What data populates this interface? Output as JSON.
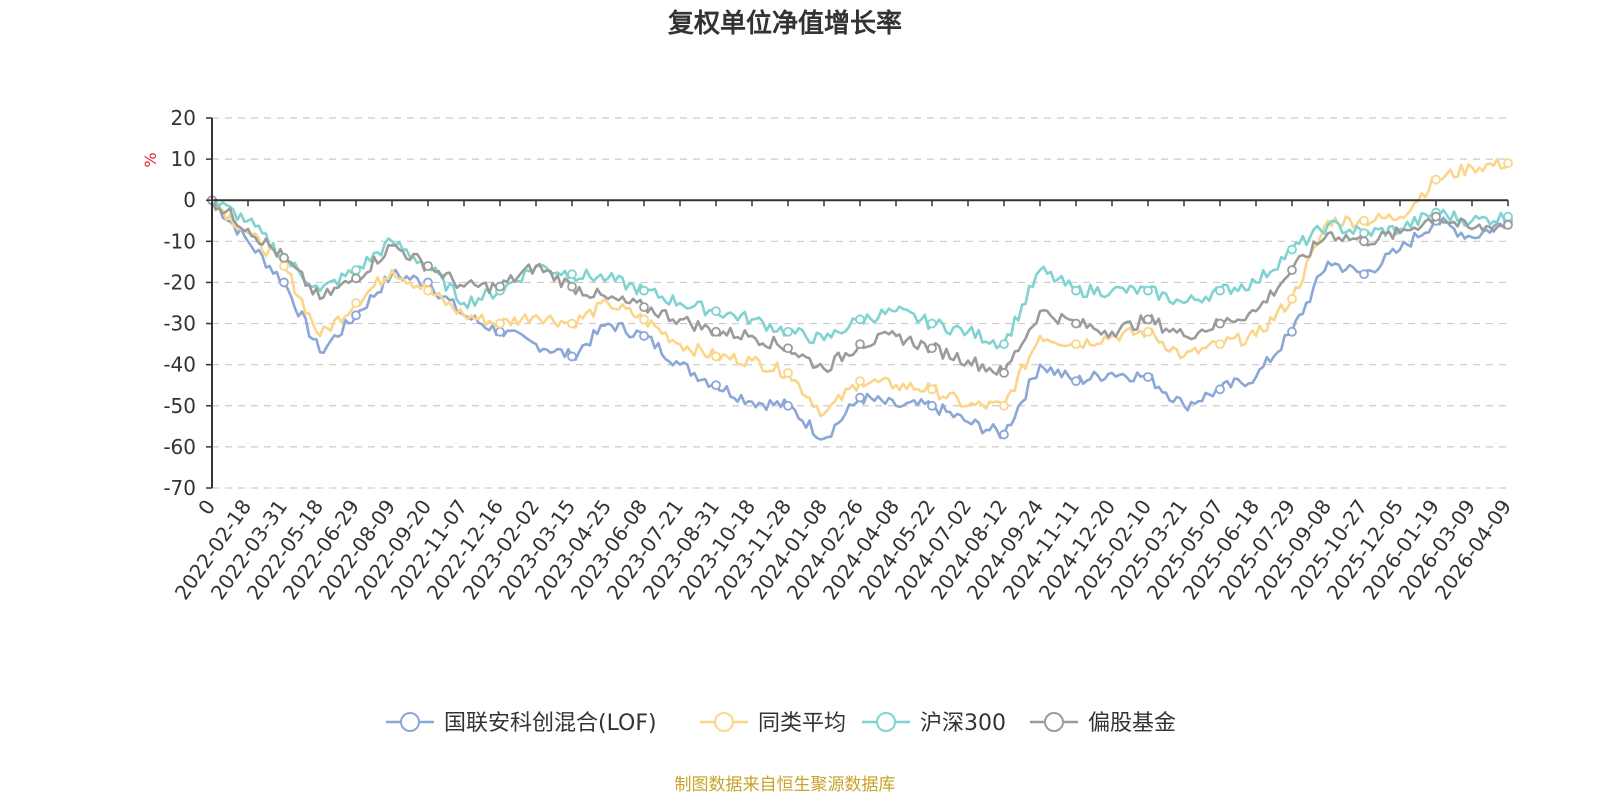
{
  "title": "复权单位净值增长率",
  "source_note": "制图数据来自恒生聚源数据库",
  "chart_data": {
    "type": "line",
    "title": "复权单位净值增长率",
    "ylabel": "%",
    "ylim": [
      -70,
      20
    ],
    "yticks": [
      "20",
      "10",
      "0",
      "-10",
      "-20",
      "-30",
      "-40",
      "-50",
      "-60",
      "-70"
    ],
    "x_origin_label": "0",
    "x_tick_labels": [
      "2022-02-18",
      "2022-03-31",
      "2022-05-18",
      "2022-06-29",
      "2022-08-09",
      "2022-09-20",
      "2022-11-07",
      "2022-12-16",
      "2023-02-02",
      "2023-03-15",
      "2023-04-25",
      "2023-06-08",
      "2023-07-21",
      "2023-08-31",
      "2023-10-18",
      "2023-11-28",
      "2024-01-08",
      "2024-02-26",
      "2024-04-08",
      "2024-05-22",
      "2024-07-02",
      "2024-08-12",
      "2024-09-24",
      "2024-11-11",
      "2024-12-20",
      "2025-02-10",
      "2025-03-21",
      "2025-05-07",
      "2025-06-18",
      "2025-07-29",
      "2025-09-08",
      "2025-10-27",
      "2025-12-05",
      "2026-01-19",
      "2026-03-09",
      "2026-04-09"
    ],
    "x_index": [
      0,
      1,
      2,
      3,
      4,
      5,
      6,
      7,
      8,
      9,
      10,
      11,
      12,
      13,
      14,
      15,
      16,
      17,
      18,
      19,
      20,
      21,
      22,
      23,
      24,
      25,
      26,
      27,
      28,
      29,
      30,
      31,
      32,
      33,
      34,
      35,
      36
    ],
    "series": [
      {
        "name": "国联安科创混合(LOF)",
        "color": "#8aa7d8",
        "values": [
          0,
          -10,
          -20,
          -37,
          -28,
          -18,
          -20,
          -28,
          -32,
          -35,
          -38,
          -30,
          -33,
          -40,
          -45,
          -49,
          -50,
          -58,
          -48,
          -50,
          -50,
          -54,
          -57,
          -40,
          -44,
          -42,
          -43,
          -50,
          -46,
          -43,
          -32,
          -15,
          -18,
          -12,
          -5,
          -9,
          -5
        ]
      },
      {
        "name": "同类平均",
        "color": "#fbd68a",
        "values": [
          0,
          -8,
          -16,
          -33,
          -25,
          -17,
          -22,
          -28,
          -30,
          -28,
          -30,
          -25,
          -29,
          -35,
          -38,
          -39,
          -42,
          -52,
          -44,
          -45,
          -46,
          -50,
          -50,
          -33,
          -35,
          -33,
          -32,
          -38,
          -35,
          -33,
          -24,
          -5,
          -5,
          -4,
          5,
          8,
          9
        ]
      },
      {
        "name": "沪深300",
        "color": "#7fd3d0",
        "values": [
          0,
          -5,
          -14,
          -22,
          -17,
          -10,
          -16,
          -25,
          -22,
          -16,
          -18,
          -19,
          -22,
          -25,
          -27,
          -29,
          -32,
          -34,
          -29,
          -27,
          -30,
          -32,
          -35,
          -17,
          -22,
          -22,
          -22,
          -25,
          -22,
          -20,
          -12,
          -6,
          -8,
          -7,
          -3,
          -5,
          -4
        ]
      },
      {
        "name": "偏股基金",
        "color": "#9b9b9b",
        "values": [
          0,
          -7,
          -14,
          -24,
          -19,
          -11,
          -16,
          -21,
          -21,
          -16,
          -21,
          -24,
          -26,
          -29,
          -32,
          -33,
          -36,
          -41,
          -35,
          -33,
          -36,
          -39,
          -42,
          -27,
          -30,
          -32,
          -29,
          -33,
          -30,
          -27,
          -17,
          -8,
          -10,
          -8,
          -4,
          -7,
          -6
        ]
      }
    ]
  }
}
